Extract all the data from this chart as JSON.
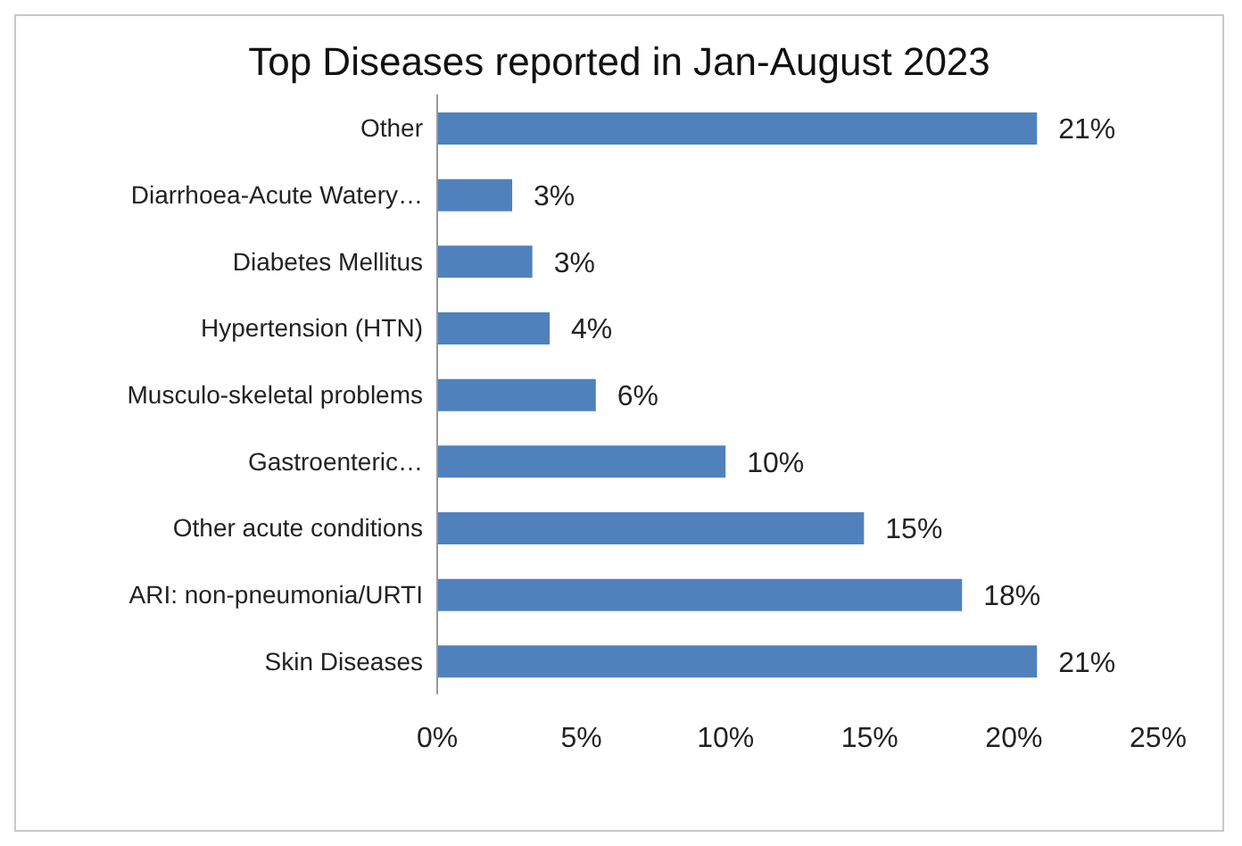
{
  "chart_data": {
    "type": "bar",
    "orientation": "horizontal",
    "title": "Top Diseases reported in Jan-August 2023",
    "categories": [
      "Other",
      "Diarrhoea-Acute Watery…",
      "Diabetes Mellitus",
      "Hypertension (HTN)",
      "Musculo-skeletal problems",
      "Gastroenteric…",
      "Other acute conditions",
      "ARI: non-pneumonia/URTI",
      "Skin Diseases"
    ],
    "values": [
      20.8,
      2.6,
      3.3,
      3.9,
      5.5,
      10.0,
      14.8,
      18.2,
      20.8
    ],
    "value_labels": [
      "21%",
      "3%",
      "3%",
      "4%",
      "6%",
      "10%",
      "15%",
      "18%",
      "21%"
    ],
    "color": "#4f81bd",
    "xlim": [
      0,
      25
    ],
    "xticks": [
      {
        "value": 0,
        "label": "0%"
      },
      {
        "value": 5,
        "label": "5%"
      },
      {
        "value": 10,
        "label": "10%"
      },
      {
        "value": 15,
        "label": "15%"
      },
      {
        "value": 20,
        "label": "20%"
      },
      {
        "value": 25,
        "label": "25%"
      }
    ],
    "grid": false,
    "legend": false
  }
}
